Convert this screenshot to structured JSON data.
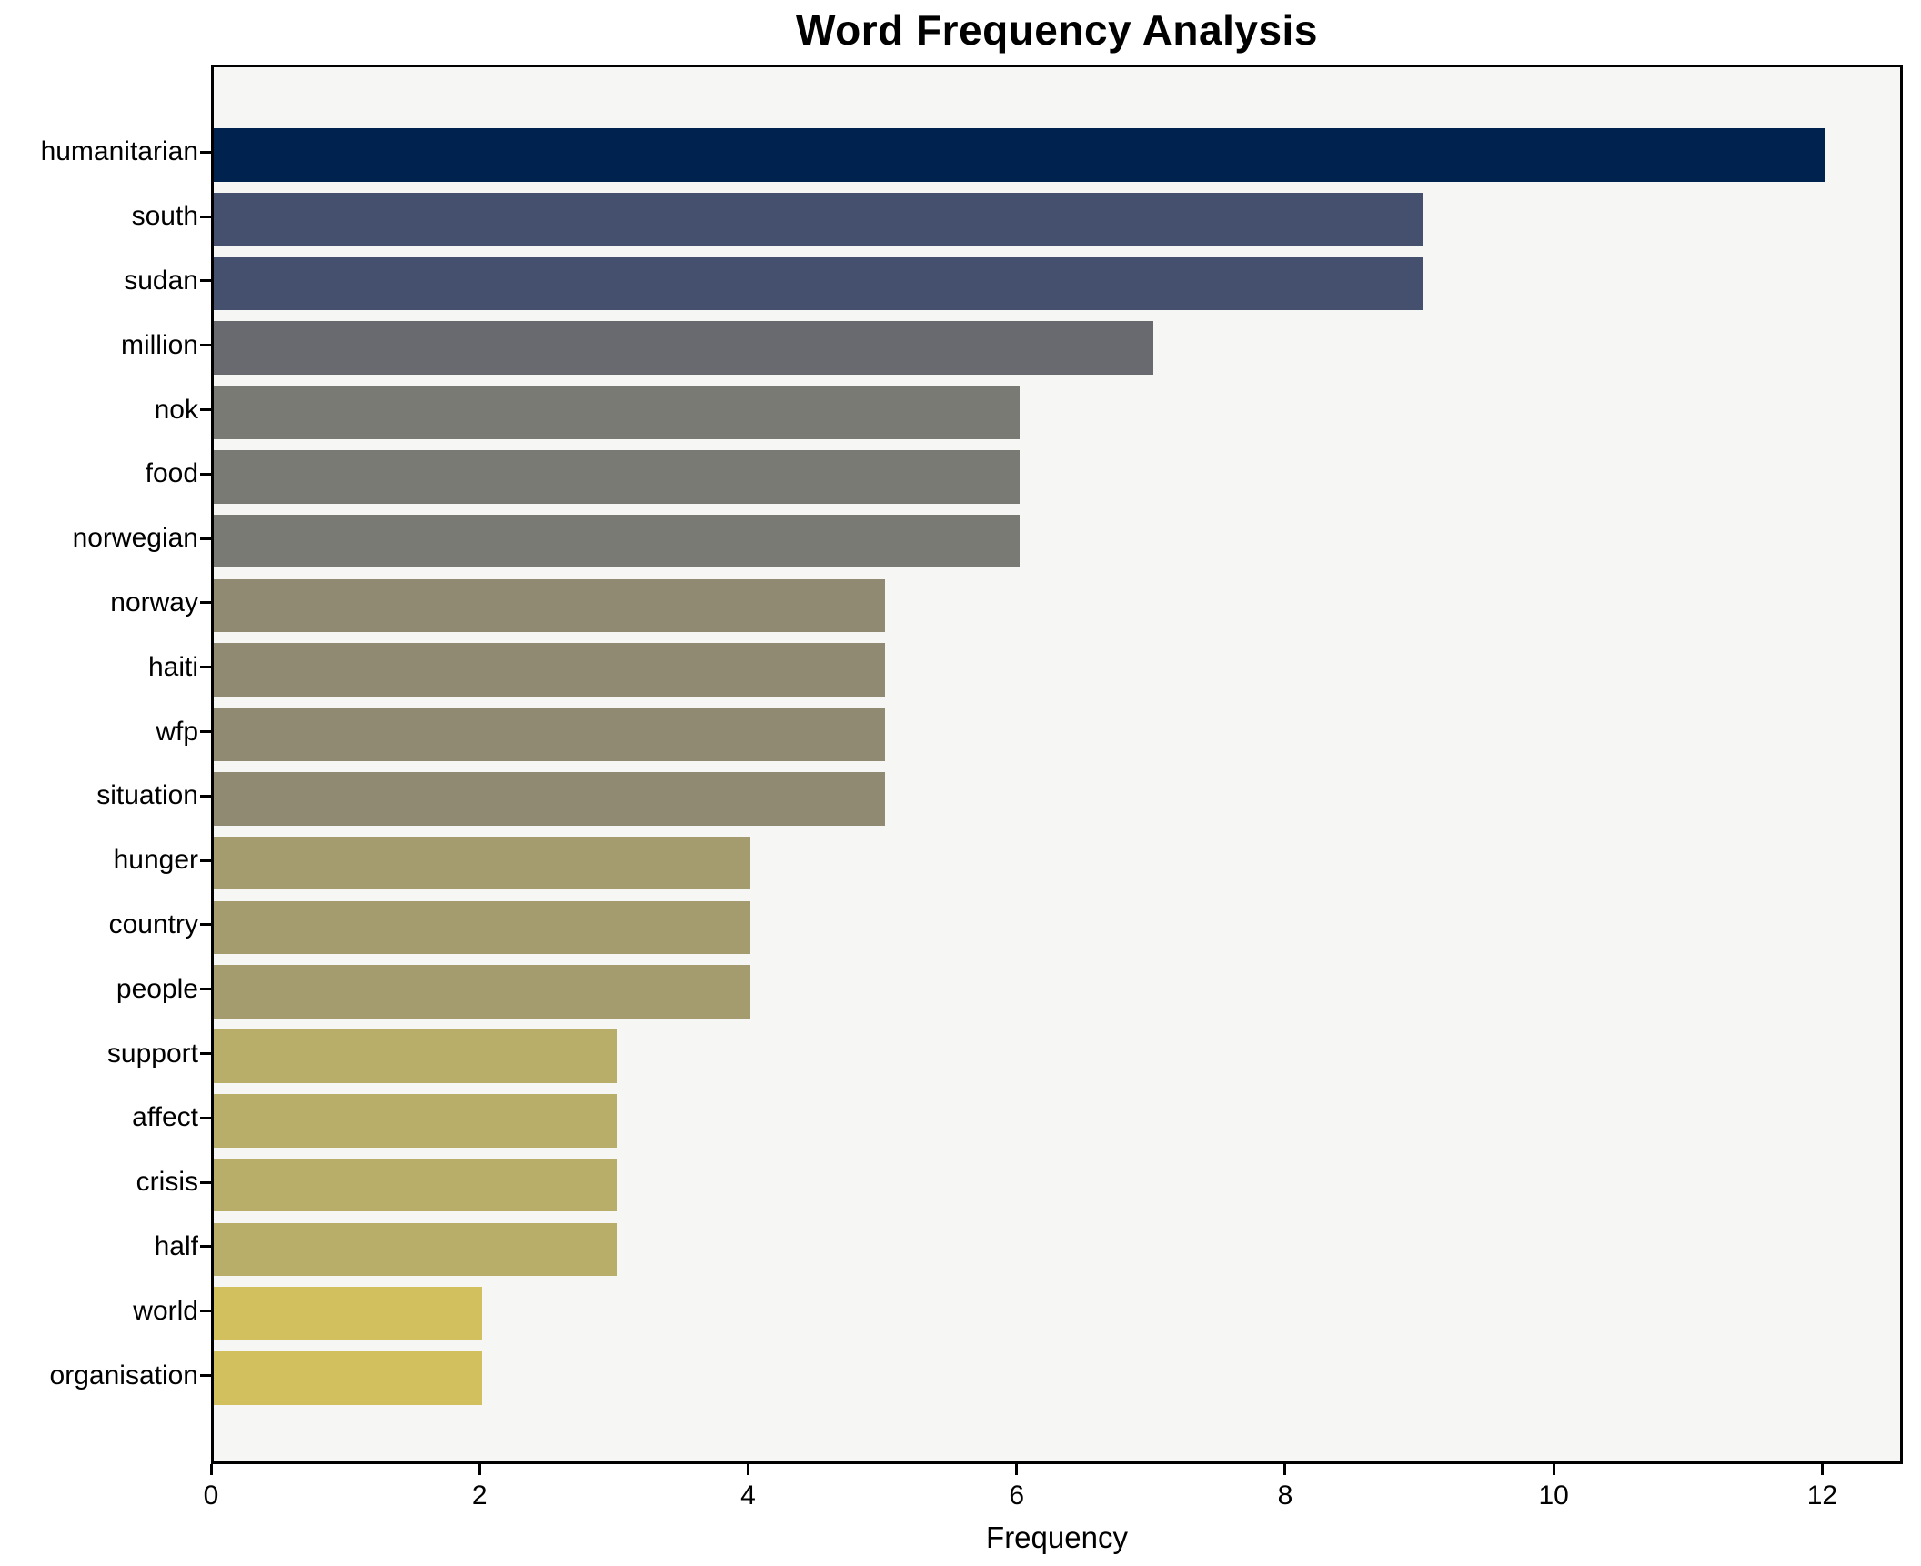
{
  "figure": {
    "background": "#ffffff",
    "plot_background": "#f6f6f4",
    "axis_color": "#000000"
  },
  "chart_data": {
    "type": "bar",
    "orientation": "horizontal",
    "title": "Word Frequency Analysis",
    "xlabel": "Frequency",
    "ylabel": "",
    "categories": [
      "humanitarian",
      "south",
      "sudan",
      "million",
      "nok",
      "food",
      "norwegian",
      "norway",
      "haiti",
      "wfp",
      "situation",
      "hunger",
      "country",
      "people",
      "support",
      "affect",
      "crisis",
      "half",
      "world",
      "organisation"
    ],
    "values": [
      12,
      9,
      9,
      7,
      6,
      6,
      6,
      5,
      5,
      5,
      5,
      4,
      4,
      4,
      3,
      3,
      3,
      3,
      2,
      2
    ],
    "bar_colors": [
      "#00224e",
      "#454f6e",
      "#454f6e",
      "#696a70",
      "#7a7a75",
      "#7a7a75",
      "#7a7a75",
      "#908a72",
      "#908a72",
      "#908a72",
      "#908a72",
      "#a49c6e",
      "#a49c6e",
      "#a49c6e",
      "#b9ad6a",
      "#b9ad6a",
      "#b9ad6a",
      "#b9ad6a",
      "#d2c05e",
      "#d2c05e"
    ],
    "xlim": [
      0,
      12.6
    ],
    "xticks": [
      0,
      2,
      4,
      6,
      8,
      10,
      12
    ],
    "grid": false,
    "legend": null,
    "colormap": "cividis"
  }
}
